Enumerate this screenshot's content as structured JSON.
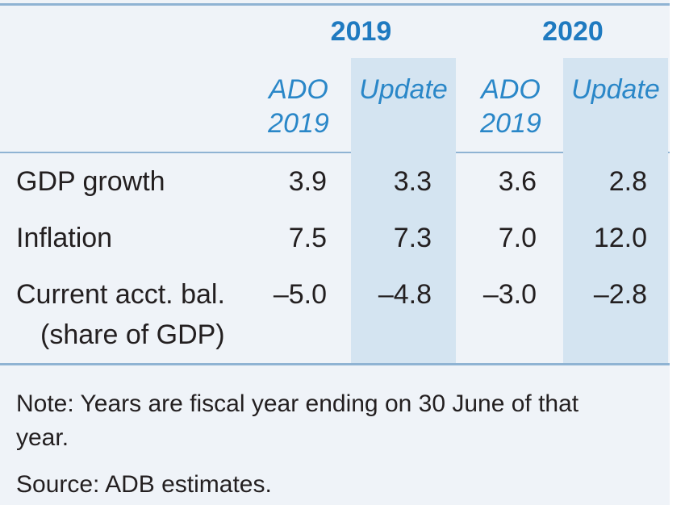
{
  "years": [
    "2019",
    "2020"
  ],
  "subheaders": [
    {
      "line1": "ADO",
      "line2": "2019"
    },
    {
      "line1": "Update",
      "line2": ""
    },
    {
      "line1": "ADO",
      "line2": "2019"
    },
    {
      "line1": "Update",
      "line2": ""
    }
  ],
  "rows": [
    {
      "label": "GDP growth",
      "label2": "",
      "values": [
        "3.9",
        "3.3",
        "3.6",
        "2.8"
      ]
    },
    {
      "label": "Inflation",
      "label2": "",
      "values": [
        "7.5",
        "7.3",
        "7.0",
        "12.0"
      ]
    },
    {
      "label": "Current acct. bal.",
      "label2": "(share of GDP)",
      "values": [
        "–5.0",
        "–4.8",
        "–3.0",
        "–2.8"
      ]
    }
  ],
  "note": "Note: Years are fiscal year ending on 30 June of that year.",
  "source": "Source: ADB estimates.",
  "colors": {
    "accent": "#1f7ac0",
    "shade": "#d4e4f1",
    "panel": "#eff3f8",
    "rule": "#8fb3d3"
  }
}
